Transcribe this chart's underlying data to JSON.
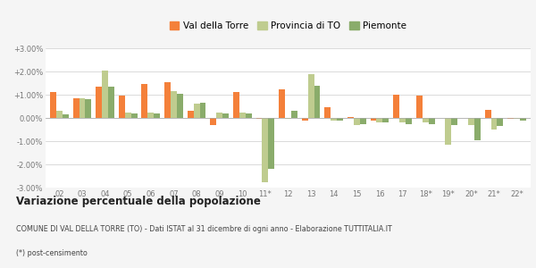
{
  "years": [
    "02",
    "03",
    "04",
    "05",
    "06",
    "07",
    "08",
    "09",
    "10",
    "11*",
    "12",
    "13",
    "14",
    "15",
    "16",
    "17",
    "18*",
    "19*",
    "20*",
    "21*",
    "22*"
  ],
  "val_della_torre": [
    1.1,
    0.85,
    1.35,
    0.95,
    1.45,
    1.55,
    0.3,
    -0.3,
    1.1,
    -0.05,
    1.25,
    -0.1,
    0.45,
    0.05,
    -0.1,
    1.0,
    0.95,
    0.0,
    0.0,
    0.35,
    -0.05
  ],
  "provincia_to": [
    0.3,
    0.85,
    2.05,
    0.25,
    0.25,
    1.15,
    0.6,
    0.25,
    0.25,
    -2.75,
    -0.05,
    1.9,
    -0.1,
    -0.3,
    -0.2,
    -0.2,
    -0.2,
    -1.15,
    -0.3,
    -0.5,
    -0.05
  ],
  "piemonte": [
    0.15,
    0.8,
    1.35,
    0.2,
    0.2,
    1.05,
    0.65,
    0.2,
    0.2,
    -2.2,
    0.3,
    1.4,
    -0.1,
    -0.25,
    -0.2,
    -0.25,
    -0.25,
    -0.3,
    -0.95,
    -0.35,
    -0.1
  ],
  "color_vdt": "#f4803a",
  "color_prov": "#bfcc8f",
  "color_piem": "#8aac6b",
  "bg_color": "#f5f5f5",
  "plot_bg": "#ffffff",
  "title": "Variazione percentuale della popolazione",
  "subtitle": "COMUNE DI VAL DELLA TORRE (TO) - Dati ISTAT al 31 dicembre di ogni anno - Elaborazione TUTTITALIA.IT",
  "footnote": "(*) post-censimento",
  "yticks": [
    -3.0,
    -2.0,
    -1.0,
    0.0,
    1.0,
    2.0,
    3.0
  ],
  "ytick_labels": [
    "-3.00%",
    "-2.00%",
    "-1.00%",
    "0.00%",
    "+1.00%",
    "+2.00%",
    "+3.00%"
  ]
}
